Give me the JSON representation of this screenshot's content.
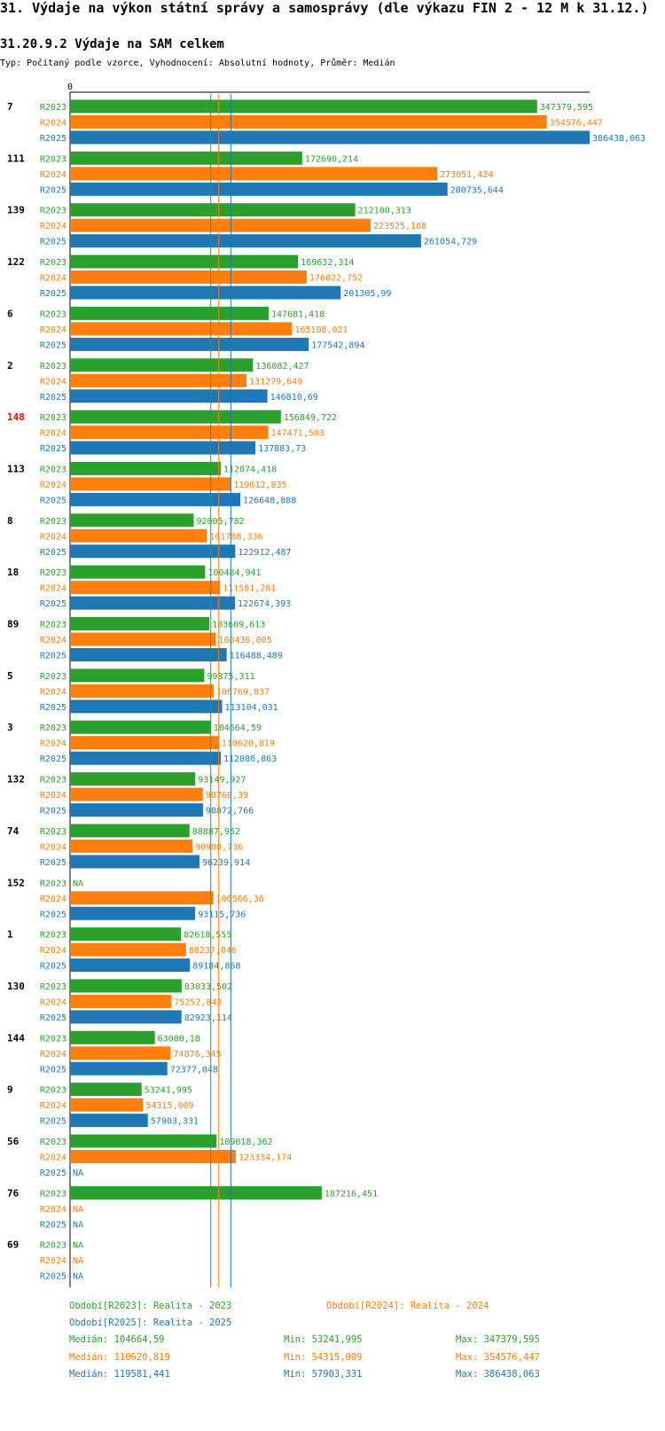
{
  "title": "31. Výdaje na výkon státní správy a samosprávy (dle výkazu FIN 2 - 12 M k 31.12.)",
  "subtitle": "31.20.9.2 Výdaje na SAM celkem",
  "description": "Typ: Počítaný podle vzorce, Vyhodnocení: Absolutní hodnoty, Průměr: Medián",
  "colors": {
    "R2023": "#2ca02c",
    "R2024": "#ff7f0e",
    "R2025": "#1f77b4",
    "highlight": "#ff0000"
  },
  "chart_data": {
    "type": "bar",
    "orientation": "horizontal",
    "axis_zero_label": "0",
    "xlim": [
      0,
      386438.063
    ],
    "series_names": [
      "R2023",
      "R2024",
      "R2025"
    ],
    "highlight_category": "148",
    "na_label": "NA",
    "medians": [
      104664.59,
      110620.819,
      119581.441
    ],
    "categories": [
      {
        "label": "7",
        "values": [
          347379.595,
          354576.447,
          386438.063
        ],
        "labels": [
          "347379,595",
          "354576,447",
          "386438,063"
        ]
      },
      {
        "label": "111",
        "values": [
          172690.214,
          273051.424,
          280735.644
        ],
        "labels": [
          "172690,214",
          "273051,424",
          "280735,644"
        ]
      },
      {
        "label": "139",
        "values": [
          212100.313,
          223525.168,
          261054.729
        ],
        "labels": [
          "212100,313",
          "223525,168",
          "261054,729"
        ]
      },
      {
        "label": "122",
        "values": [
          169632.314,
          176022.752,
          201305.99
        ],
        "labels": [
          "169632,314",
          "176022,752",
          "201305,99"
        ]
      },
      {
        "label": "6",
        "values": [
          147681.418,
          165108.021,
          177542.894
        ],
        "labels": [
          "147681,418",
          "165108,021",
          "177542,894"
        ]
      },
      {
        "label": "2",
        "values": [
          136082.427,
          131279.649,
          146810.69
        ],
        "labels": [
          "136082,427",
          "131279,649",
          "146810,69"
        ]
      },
      {
        "label": "148",
        "values": [
          156849.722,
          147471.503,
          137883.73
        ],
        "labels": [
          "156849,722",
          "147471,503",
          "137883,73"
        ]
      },
      {
        "label": "113",
        "values": [
          112074.418,
          119612.835,
          126648.888
        ],
        "labels": [
          "112074,418",
          "119612,835",
          "126648,888"
        ]
      },
      {
        "label": "8",
        "values": [
          92005.782,
          101788.336,
          122912.487
        ],
        "labels": [
          "92005,782",
          "101788,336",
          "122912,487"
        ]
      },
      {
        "label": "18",
        "values": [
          100484.941,
          111581.281,
          122674.393
        ],
        "labels": [
          "100484,941",
          "111581,281",
          "122674,393"
        ]
      },
      {
        "label": "89",
        "values": [
          103609.613,
          108436.005,
          116488.489
        ],
        "labels": [
          "103609,613",
          "108436,005",
          "116488,489"
        ]
      },
      {
        "label": "5",
        "values": [
          99875.311,
          106769.837,
          113104.031
        ],
        "labels": [
          "99875,311",
          "106769,837",
          "113104,031"
        ]
      },
      {
        "label": "3",
        "values": [
          104664.59,
          110620.819,
          112086.863
        ],
        "labels": [
          "104664,59",
          "110620,819",
          "112086,863"
        ]
      },
      {
        "label": "132",
        "values": [
          93149.927,
          98760.39,
          98872.766
        ],
        "labels": [
          "93149,927",
          "98760,39",
          "98872,766"
        ]
      },
      {
        "label": "74",
        "values": [
          88887.952,
          90980.736,
          96239.914
        ],
        "labels": [
          "88887,952",
          "90980,736",
          "96239,914"
        ]
      },
      {
        "label": "152",
        "values": [
          null,
          106566.36,
          93115.736
        ],
        "labels": [
          "NA",
          "106566,36",
          "93115,736"
        ]
      },
      {
        "label": "1",
        "values": [
          82618.555,
          86237.046,
          89184.868
        ],
        "labels": [
          "82618,555",
          "86237,046",
          "89184,868"
        ]
      },
      {
        "label": "130",
        "values": [
          83033.502,
          75252.843,
          82923.114
        ],
        "labels": [
          "83033,502",
          "75252,843",
          "82923,114"
        ]
      },
      {
        "label": "144",
        "values": [
          63080.18,
          74876.345,
          72377.048
        ],
        "labels": [
          "63080,18",
          "74876,345",
          "72377,048"
        ]
      },
      {
        "label": "9",
        "values": [
          53241.995,
          54315.009,
          57903.331
        ],
        "labels": [
          "53241,995",
          "54315,009",
          "57903,331"
        ]
      },
      {
        "label": "56",
        "values": [
          109018.362,
          123334.174,
          null
        ],
        "labels": [
          "109018,362",
          "123334,174",
          "NA"
        ]
      },
      {
        "label": "76",
        "values": [
          187216.451,
          null,
          null
        ],
        "labels": [
          "187216,451",
          "NA",
          "NA"
        ]
      },
      {
        "label": "69",
        "values": [
          null,
          null,
          null
        ],
        "labels": [
          "NA",
          "NA",
          "NA"
        ]
      }
    ]
  },
  "legend": {
    "periods": [
      "Období[R2023]: Realita - 2023",
      "Období[R2024]: Realita - 2024",
      "Období[R2025]: Realita - 2025"
    ],
    "stats": [
      {
        "median": "Medián: 104664,59",
        "min": "Min: 53241,995",
        "max": "Max: 347379,595"
      },
      {
        "median": "Medián: 110620,819",
        "min": "Min: 54315,009",
        "max": "Max: 354576,447"
      },
      {
        "median": "Medián: 119581,441",
        "min": "Min: 57903,331",
        "max": "Max: 386438,063"
      }
    ]
  }
}
